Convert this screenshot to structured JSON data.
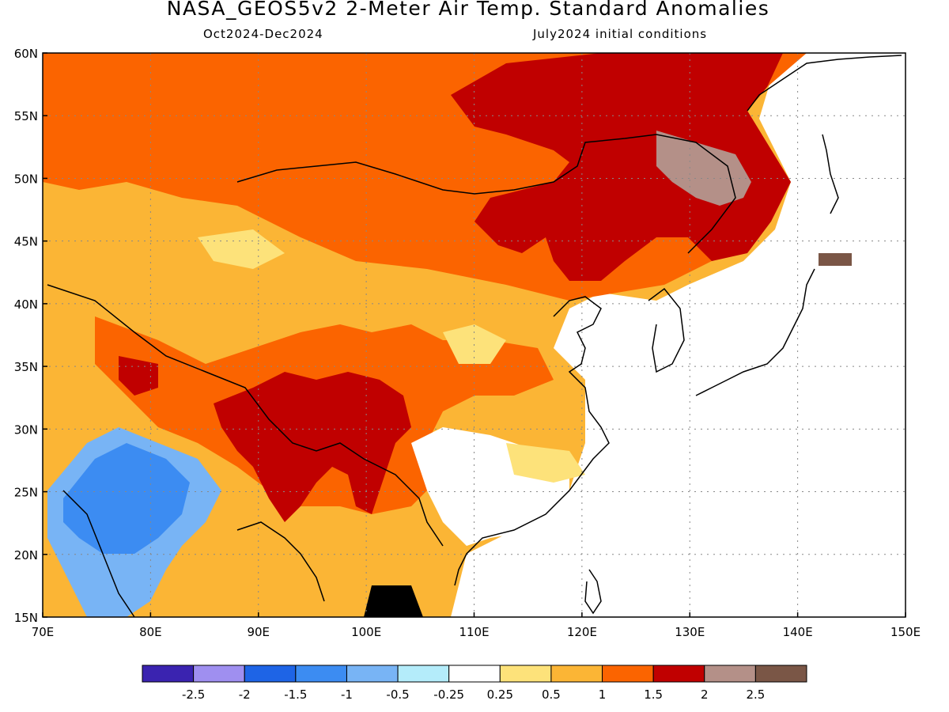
{
  "title": "NASA_GEOS5v2 2-Meter Air Temp. Standard Anomalies",
  "period": "Oct2024-Dec2024",
  "init": "July2024 initial conditions",
  "map": {
    "lon_range": [
      70,
      150
    ],
    "lat_range": [
      15,
      60
    ],
    "lon_ticks": [
      "70E",
      "80E",
      "90E",
      "100E",
      "110E",
      "120E",
      "130E",
      "140E",
      "150E"
    ],
    "lat_ticks": [
      "15N",
      "20N",
      "25N",
      "30N",
      "35N",
      "40N",
      "45N",
      "50N",
      "55N",
      "60N"
    ],
    "grid": "dotted"
  },
  "colorbar": {
    "labels": [
      "-2.5",
      "-2",
      "-1.5",
      "-1",
      "-0.5",
      "-0.25",
      "0.25",
      "0.5",
      "1",
      "1.5",
      "2",
      "2.5"
    ],
    "colors": [
      "#3a23b0",
      "#9f8ff0",
      "#1e64e6",
      "#3c8cf2",
      "#78b4f5",
      "#b4ecfa",
      "#ffffff",
      "#fde27a",
      "#fbb535",
      "#fb6400",
      "#c00000",
      "#b49088",
      "#7a5646"
    ]
  },
  "regions": [
    {
      "name": "background-warm",
      "color": "#fbb535"
    },
    {
      "name": "north-warm-belt",
      "color": "#fb6400"
    },
    {
      "name": "mongolia-manchuria-hot",
      "color": "#c00000"
    },
    {
      "name": "amur-extreme",
      "color": "#b49088"
    },
    {
      "name": "tibet-warm",
      "color": "#fb6400"
    },
    {
      "name": "tibet-hot",
      "color": "#c00000"
    },
    {
      "name": "india-cool",
      "color": "#78b4f5"
    },
    {
      "name": "india-cold",
      "color": "#3c8cf2"
    },
    {
      "name": "south-china-neutral",
      "color": "#ffffff"
    },
    {
      "name": "yellow-patches",
      "color": "#fde27a"
    },
    {
      "name": "hokkaido-extreme",
      "color": "#7a5646"
    }
  ]
}
